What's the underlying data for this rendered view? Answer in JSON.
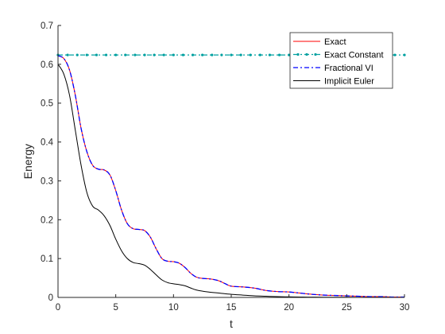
{
  "chart_data": {
    "type": "line",
    "xlabel": "t",
    "ylabel": "Energy",
    "xlim": [
      0,
      30
    ],
    "ylim": [
      0,
      0.7
    ],
    "xticks": [
      0,
      5,
      10,
      15,
      20,
      25,
      30
    ],
    "yticks": [
      0,
      0.1,
      0.2,
      0.3,
      0.4,
      0.5,
      0.6,
      0.7
    ],
    "xtick_labels": [
      "0",
      "5",
      "10",
      "15",
      "20",
      "25",
      "30"
    ],
    "ytick_labels": [
      "0",
      "0.1",
      "0.2",
      "0.3",
      "0.4",
      "0.5",
      "0.6",
      "0.7"
    ],
    "grid": false,
    "legend_position": "top-right",
    "series": [
      {
        "name": "Exact",
        "color": "#ff0000",
        "style": "solid",
        "x": [
          0,
          0.5,
          1,
          1.5,
          2,
          2.5,
          3,
          3.5,
          4,
          4.5,
          5,
          5.5,
          6,
          6.5,
          7,
          7.5,
          8,
          8.5,
          9,
          9.5,
          10,
          10.5,
          11,
          11.5,
          12,
          12.5,
          13,
          13.5,
          14,
          14.5,
          15,
          16,
          17,
          18,
          19,
          20,
          21,
          22,
          23,
          24,
          25,
          26,
          27,
          28,
          29,
          30
        ],
        "y": [
          0.622,
          0.615,
          0.585,
          0.52,
          0.435,
          0.375,
          0.34,
          0.33,
          0.328,
          0.315,
          0.275,
          0.225,
          0.19,
          0.177,
          0.175,
          0.172,
          0.155,
          0.125,
          0.1,
          0.093,
          0.092,
          0.088,
          0.077,
          0.062,
          0.052,
          0.049,
          0.048,
          0.046,
          0.042,
          0.035,
          0.029,
          0.027,
          0.024,
          0.018,
          0.015,
          0.014,
          0.011,
          0.008,
          0.006,
          0.005,
          0.004,
          0.003,
          0.002,
          0.002,
          0.001,
          0.001
        ]
      },
      {
        "name": "Exact Constant",
        "color": "#00a0a0",
        "style": "dashdot-markers",
        "x": [
          0,
          30
        ],
        "y": [
          0.624,
          0.624
        ]
      },
      {
        "name": "Fractional VI",
        "color": "#0000ff",
        "style": "dashdot",
        "x": [
          0,
          0.5,
          1,
          1.5,
          2,
          2.5,
          3,
          3.5,
          4,
          4.5,
          5,
          5.5,
          6,
          6.5,
          7,
          7.5,
          8,
          8.5,
          9,
          9.5,
          10,
          10.5,
          11,
          11.5,
          12,
          12.5,
          13,
          13.5,
          14,
          14.5,
          15,
          16,
          17,
          18,
          19,
          20,
          21,
          22,
          23,
          24,
          25,
          26,
          27,
          28,
          29,
          30
        ],
        "y": [
          0.622,
          0.615,
          0.585,
          0.52,
          0.435,
          0.375,
          0.34,
          0.33,
          0.328,
          0.315,
          0.275,
          0.225,
          0.19,
          0.177,
          0.175,
          0.172,
          0.155,
          0.125,
          0.1,
          0.093,
          0.092,
          0.088,
          0.077,
          0.062,
          0.052,
          0.049,
          0.048,
          0.046,
          0.042,
          0.035,
          0.029,
          0.027,
          0.024,
          0.018,
          0.015,
          0.014,
          0.011,
          0.008,
          0.006,
          0.005,
          0.004,
          0.003,
          0.002,
          0.002,
          0.001,
          0.001
        ]
      },
      {
        "name": "Implicit Euler",
        "color": "#000000",
        "style": "solid",
        "x": [
          0,
          0.5,
          1,
          1.5,
          2,
          2.5,
          3,
          3.5,
          4,
          4.5,
          5,
          5.5,
          6,
          6.5,
          7,
          7.5,
          8,
          8.5,
          9,
          9.5,
          10,
          10.5,
          11,
          11.5,
          12,
          13,
          14,
          15,
          16,
          17,
          18,
          19,
          20,
          21,
          22,
          23,
          24,
          25,
          26,
          27,
          28,
          29,
          30
        ],
        "y": [
          0.6,
          0.575,
          0.52,
          0.43,
          0.34,
          0.27,
          0.235,
          0.225,
          0.21,
          0.185,
          0.15,
          0.12,
          0.1,
          0.09,
          0.087,
          0.083,
          0.072,
          0.058,
          0.045,
          0.038,
          0.035,
          0.033,
          0.03,
          0.024,
          0.019,
          0.014,
          0.011,
          0.008,
          0.006,
          0.004,
          0.003,
          0.002,
          0.0015,
          0.001,
          0.0008,
          0.0006,
          0.0005,
          0.0004,
          0.0003,
          0.0002,
          0.0002,
          0.0001,
          0.0001
        ]
      }
    ]
  }
}
